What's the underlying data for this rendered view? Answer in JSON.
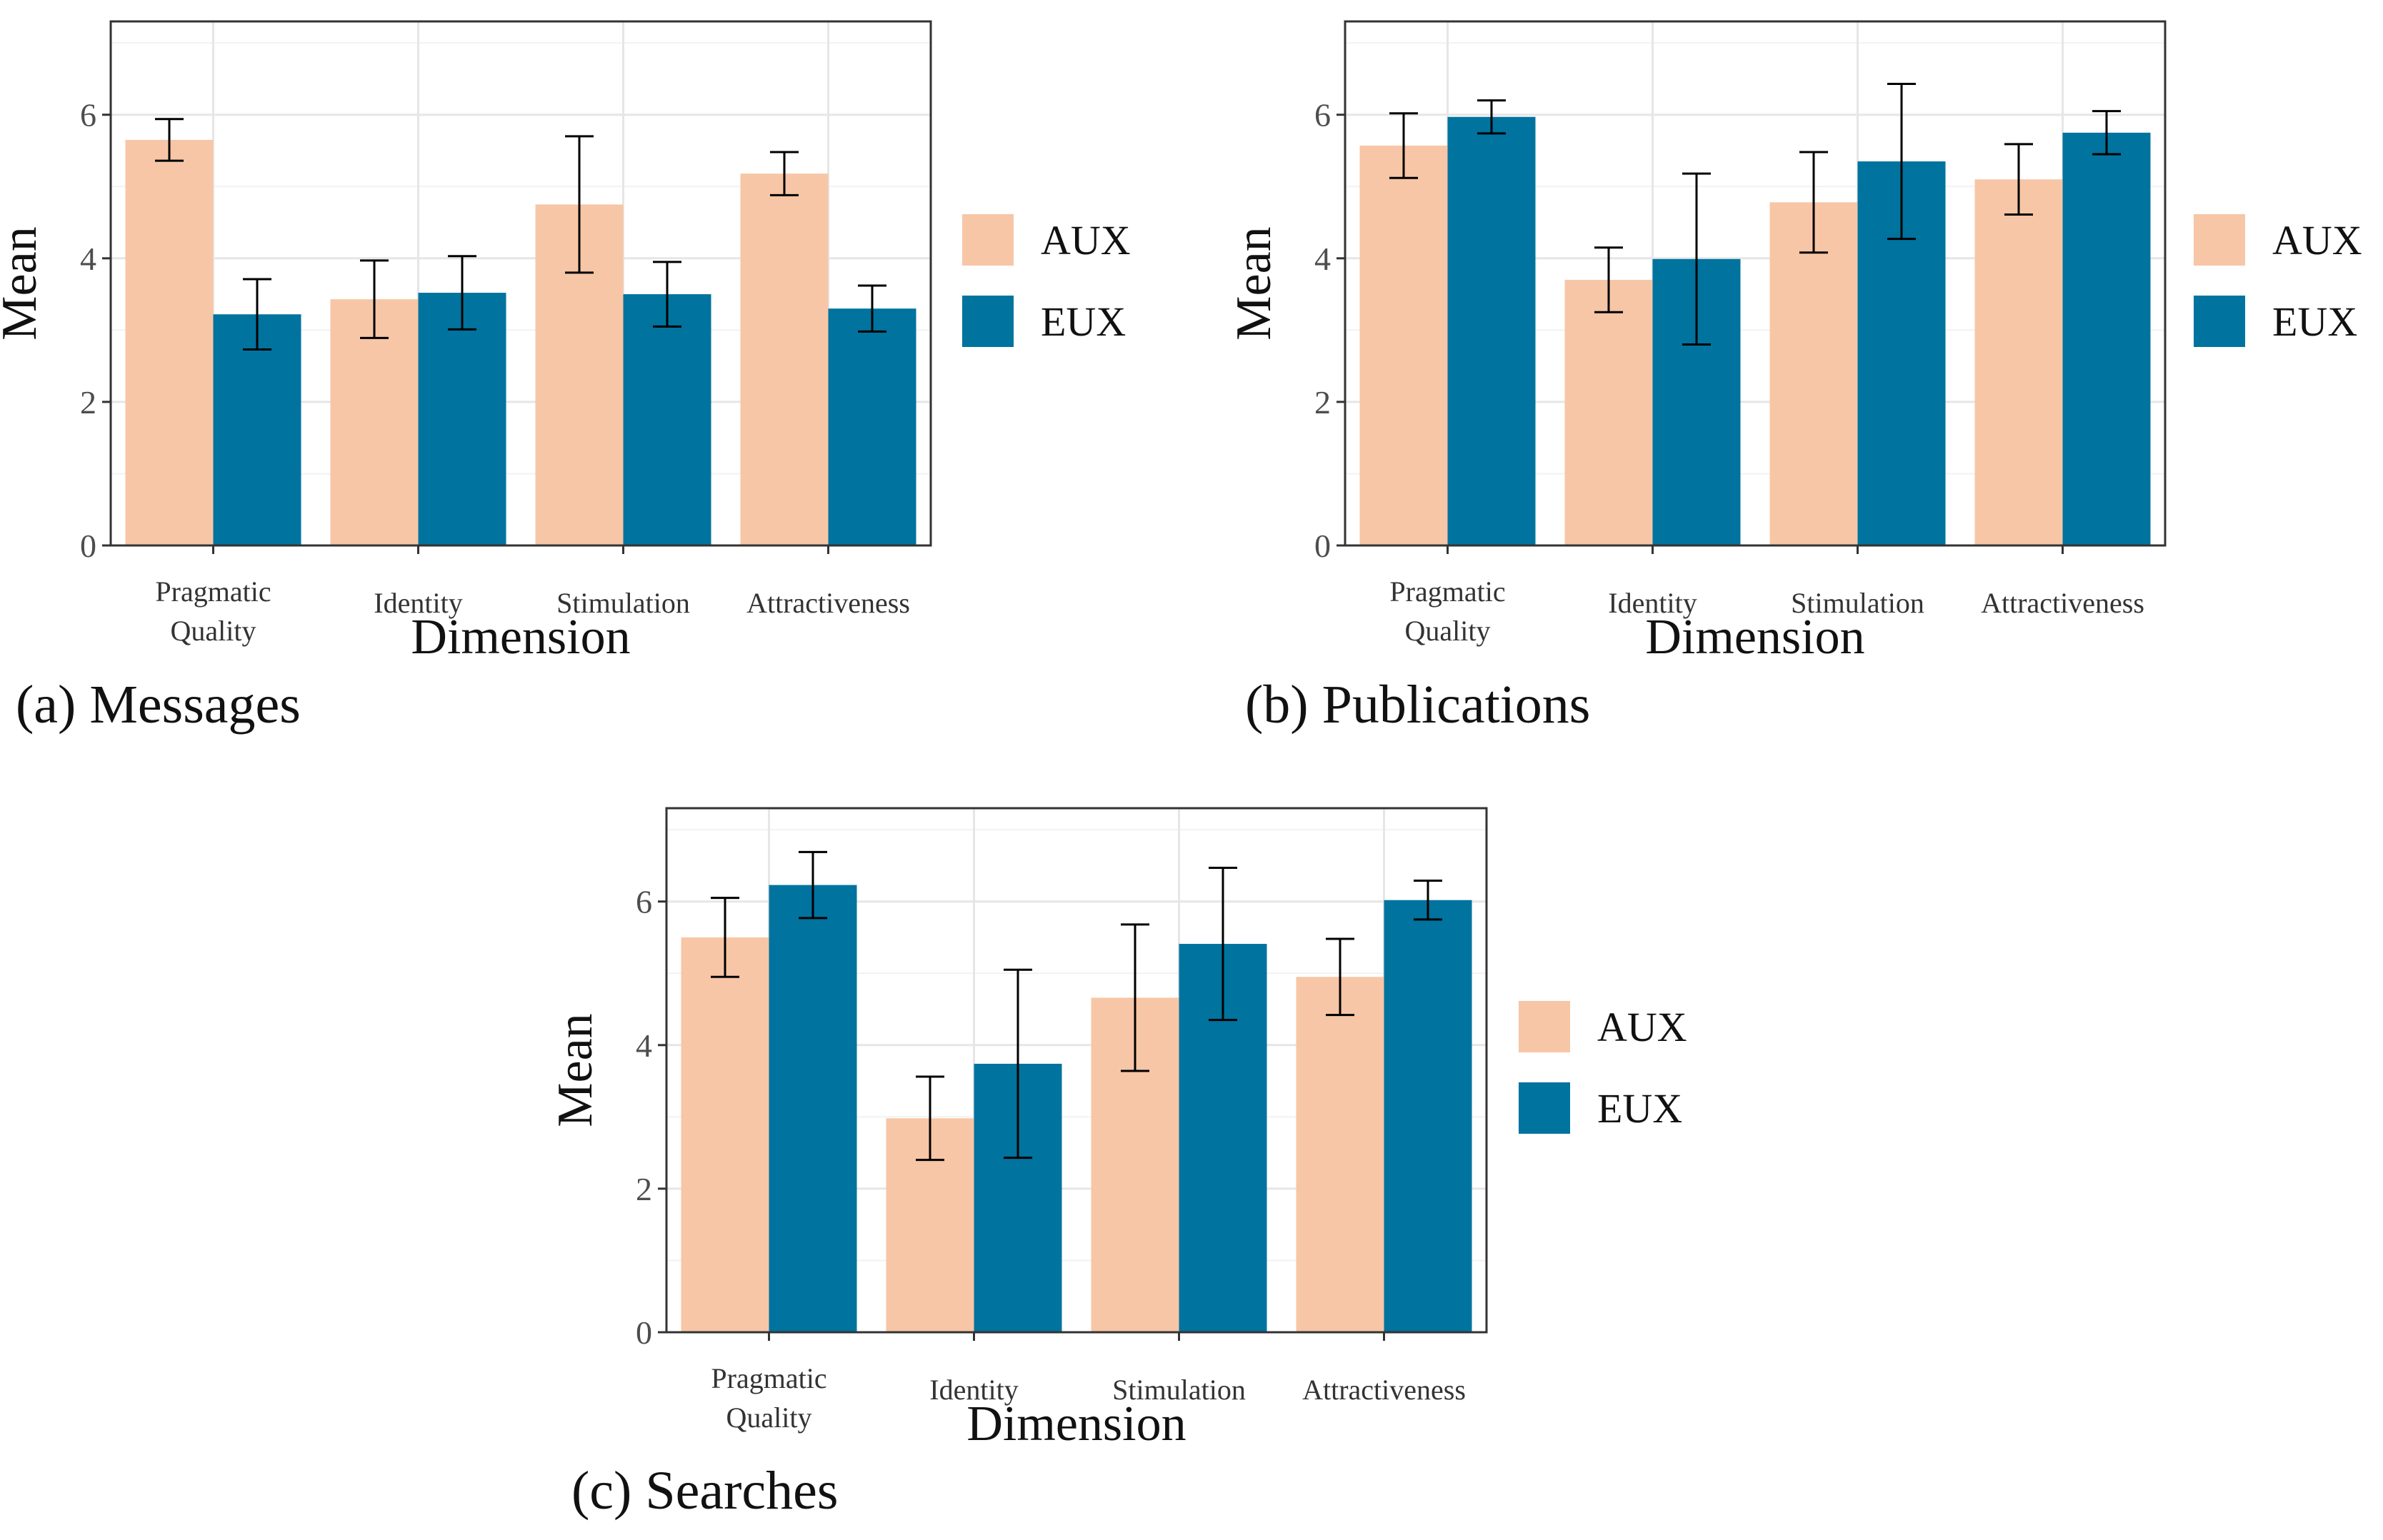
{
  "chart_data": [
    {
      "type": "bar",
      "caption": "(a) Messages",
      "xlabel": "Dimension",
      "ylabel": "Mean",
      "ylim": [
        0,
        7.3
      ],
      "yticks": [
        "0",
        "2",
        "4",
        "6"
      ],
      "grid": true,
      "legend": "right",
      "categories": [
        [
          "Pragmatic",
          "Quality"
        ],
        [
          "Identity"
        ],
        [
          "Stimulation"
        ],
        [
          "Attractiveness"
        ]
      ],
      "series": [
        {
          "name": "AUX",
          "color": "#F7C6A6",
          "values": [
            5.65,
            3.43,
            4.75,
            5.18
          ],
          "err_low": [
            5.36,
            2.89,
            3.8,
            4.88
          ],
          "err_high": [
            5.94,
            3.97,
            5.7,
            5.48
          ]
        },
        {
          "name": "EUX",
          "color": "#00739E",
          "values": [
            3.22,
            3.52,
            3.5,
            3.3
          ],
          "err_low": [
            2.73,
            3.01,
            3.05,
            2.98
          ],
          "err_high": [
            3.71,
            4.03,
            3.95,
            3.62
          ]
        }
      ]
    },
    {
      "type": "bar",
      "caption": "(b) Publications",
      "xlabel": "Dimension",
      "ylabel": "Mean",
      "ylim": [
        0,
        7.3
      ],
      "yticks": [
        "0",
        "2",
        "4",
        "6"
      ],
      "grid": true,
      "legend": "right",
      "categories": [
        [
          "Pragmatic",
          "Quality"
        ],
        [
          "Identity"
        ],
        [
          "Stimulation"
        ],
        [
          "Attractiveness"
        ]
      ],
      "series": [
        {
          "name": "AUX",
          "color": "#F7C6A6",
          "values": [
            5.57,
            3.7,
            4.78,
            5.1
          ],
          "err_low": [
            5.12,
            3.25,
            4.08,
            4.61
          ],
          "err_high": [
            6.02,
            4.15,
            5.48,
            5.59
          ]
        },
        {
          "name": "EUX",
          "color": "#00739E",
          "values": [
            5.97,
            3.99,
            5.35,
            5.75
          ],
          "err_low": [
            5.74,
            2.8,
            4.27,
            5.45
          ],
          "err_high": [
            6.2,
            5.18,
            6.43,
            6.05
          ]
        }
      ]
    },
    {
      "type": "bar",
      "caption": "(c) Searches",
      "xlabel": "Dimension",
      "ylabel": "Mean",
      "ylim": [
        0,
        7.3
      ],
      "yticks": [
        "0",
        "2",
        "4",
        "6"
      ],
      "grid": true,
      "legend": "right",
      "categories": [
        [
          "Pragmatic",
          "Quality"
        ],
        [
          "Identity"
        ],
        [
          "Stimulation"
        ],
        [
          "Attractiveness"
        ]
      ],
      "series": [
        {
          "name": "AUX",
          "color": "#F7C6A6",
          "values": [
            5.5,
            2.98,
            4.66,
            4.95
          ],
          "err_low": [
            4.95,
            2.4,
            3.64,
            4.42
          ],
          "err_high": [
            6.05,
            3.56,
            5.68,
            5.48
          ]
        },
        {
          "name": "EUX",
          "color": "#00739E",
          "values": [
            6.23,
            3.74,
            5.41,
            6.02
          ],
          "err_low": [
            5.77,
            2.43,
            4.35,
            5.75
          ],
          "err_high": [
            6.69,
            5.05,
            6.47,
            6.29
          ]
        }
      ]
    }
  ]
}
